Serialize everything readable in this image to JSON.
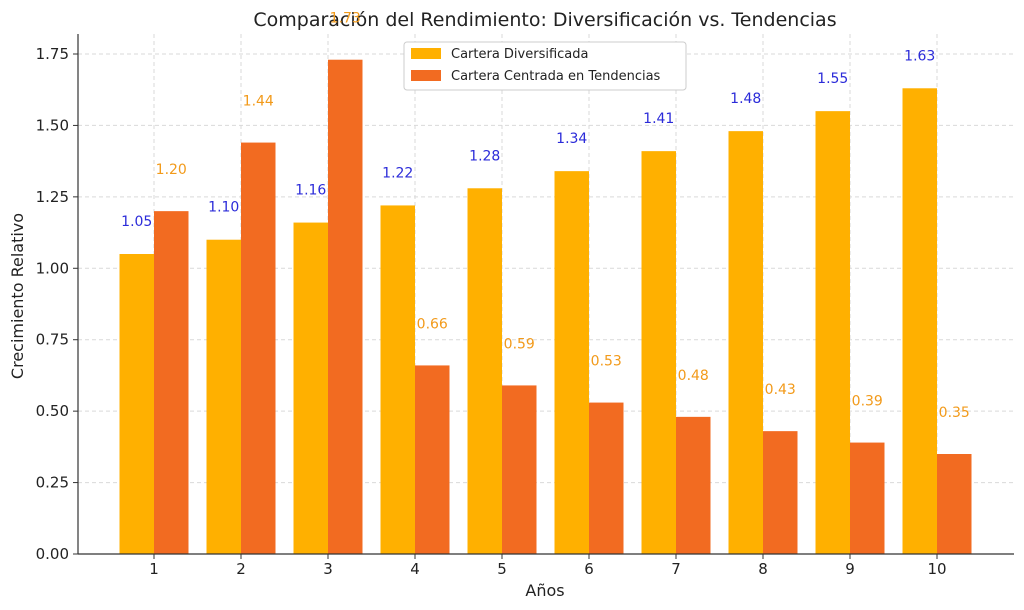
{
  "chart_data": {
    "type": "bar",
    "title": "Comparación del Rendimiento: Diversificación vs. Tendencias",
    "xlabel": "Años",
    "ylabel": "Crecimiento Relativo",
    "categories": [
      "1",
      "2",
      "3",
      "4",
      "5",
      "6",
      "7",
      "8",
      "9",
      "10"
    ],
    "ylim": [
      0,
      1.82
    ],
    "yticks": [
      0.0,
      0.25,
      0.5,
      0.75,
      1.0,
      1.25,
      1.5,
      1.75
    ],
    "ytick_labels": [
      "0.00",
      "0.25",
      "0.50",
      "0.75",
      "1.00",
      "1.25",
      "1.50",
      "1.75"
    ],
    "grid": true,
    "legend_position": "top-center",
    "series": [
      {
        "name": "Cartera Diversificada",
        "color": "#FFB000",
        "label_color": "#2B2BD9",
        "values": [
          1.05,
          1.1,
          1.16,
          1.22,
          1.28,
          1.34,
          1.41,
          1.48,
          1.55,
          1.63
        ],
        "labels": [
          "1.05",
          "1.10",
          "1.16",
          "1.22",
          "1.28",
          "1.34",
          "1.41",
          "1.48",
          "1.55",
          "1.63"
        ]
      },
      {
        "name": "Cartera Centrada en Tendencias",
        "color": "#F26B21",
        "label_color": "#F29A1A",
        "values": [
          1.2,
          1.44,
          1.73,
          0.66,
          0.59,
          0.53,
          0.48,
          0.43,
          0.39,
          0.35
        ],
        "labels": [
          "1.20",
          "1.44",
          "1.73",
          "0.66",
          "0.59",
          "0.53",
          "0.48",
          "0.43",
          "0.39",
          "0.35"
        ]
      }
    ]
  }
}
